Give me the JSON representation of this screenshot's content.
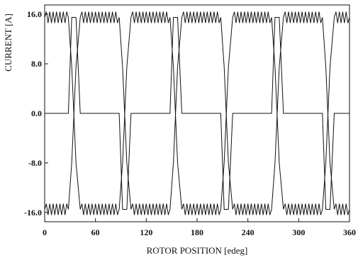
{
  "chart_data": {
    "type": "line",
    "xlabel": "ROTOR POSITION  [edeg]",
    "ylabel": "CURRENT [A]",
    "xlim": [
      0,
      360
    ],
    "ylim": [
      -17.5,
      17.5
    ],
    "xticks": [
      "0",
      "60",
      "120",
      "180",
      "240",
      "300",
      "360"
    ],
    "yticks": [
      "16.0",
      "8.0",
      "0.0",
      "-8.0",
      "-16.0"
    ],
    "xtick_values": [
      0,
      60,
      120,
      180,
      240,
      300,
      360
    ],
    "ytick_values": [
      16,
      8,
      0,
      -8,
      -16
    ],
    "grid": false,
    "series": [
      {
        "x": [
          0,
          28,
          32,
          37,
          42,
          88,
          92,
          97,
          102,
          148,
          152,
          157,
          162,
          208,
          212,
          217,
          222,
          268,
          272,
          277,
          282,
          328,
          332,
          337,
          342,
          360
        ],
        "values": [
          15.5,
          15.5,
          7.5,
          -8,
          -15.5,
          -15.5,
          -8,
          7.5,
          15.5,
          15.5,
          7.5,
          -8,
          -15.5,
          -15.5,
          -8,
          7.5,
          15.5,
          15.5,
          7.5,
          -8,
          -15.5,
          -15.5,
          -8,
          7.5,
          15.5,
          15.5
        ]
      },
      {
        "x": [
          0,
          28,
          32,
          37,
          42,
          88,
          92,
          97,
          102,
          148,
          152,
          157,
          162,
          208,
          212,
          217,
          222,
          268,
          272,
          277,
          282,
          328,
          332,
          337,
          342,
          360
        ],
        "values": [
          -15.5,
          -15.5,
          -8,
          7.5,
          15.5,
          15.5,
          7.5,
          -8,
          -15.5,
          -15.5,
          -8,
          7.5,
          15.5,
          15.5,
          7.5,
          -8,
          -15.5,
          -15.5,
          -8,
          7.5,
          15.5,
          15.5,
          7.5,
          -8,
          -15.5,
          -15.5
        ]
      },
      {
        "x": [
          0,
          28,
          32,
          37,
          42,
          88,
          92,
          97,
          102,
          148,
          152,
          157,
          162,
          208,
          212,
          217,
          222,
          268,
          272,
          277,
          282,
          328,
          332,
          337,
          342,
          360
        ],
        "values": [
          0,
          0,
          15.5,
          15.5,
          0,
          0,
          -15.5,
          -15.5,
          0,
          0,
          15.5,
          15.5,
          0,
          0,
          -15.5,
          -15.5,
          0,
          0,
          15.5,
          15.5,
          0,
          0,
          -15.5,
          -15.5,
          0,
          0
        ]
      }
    ]
  }
}
